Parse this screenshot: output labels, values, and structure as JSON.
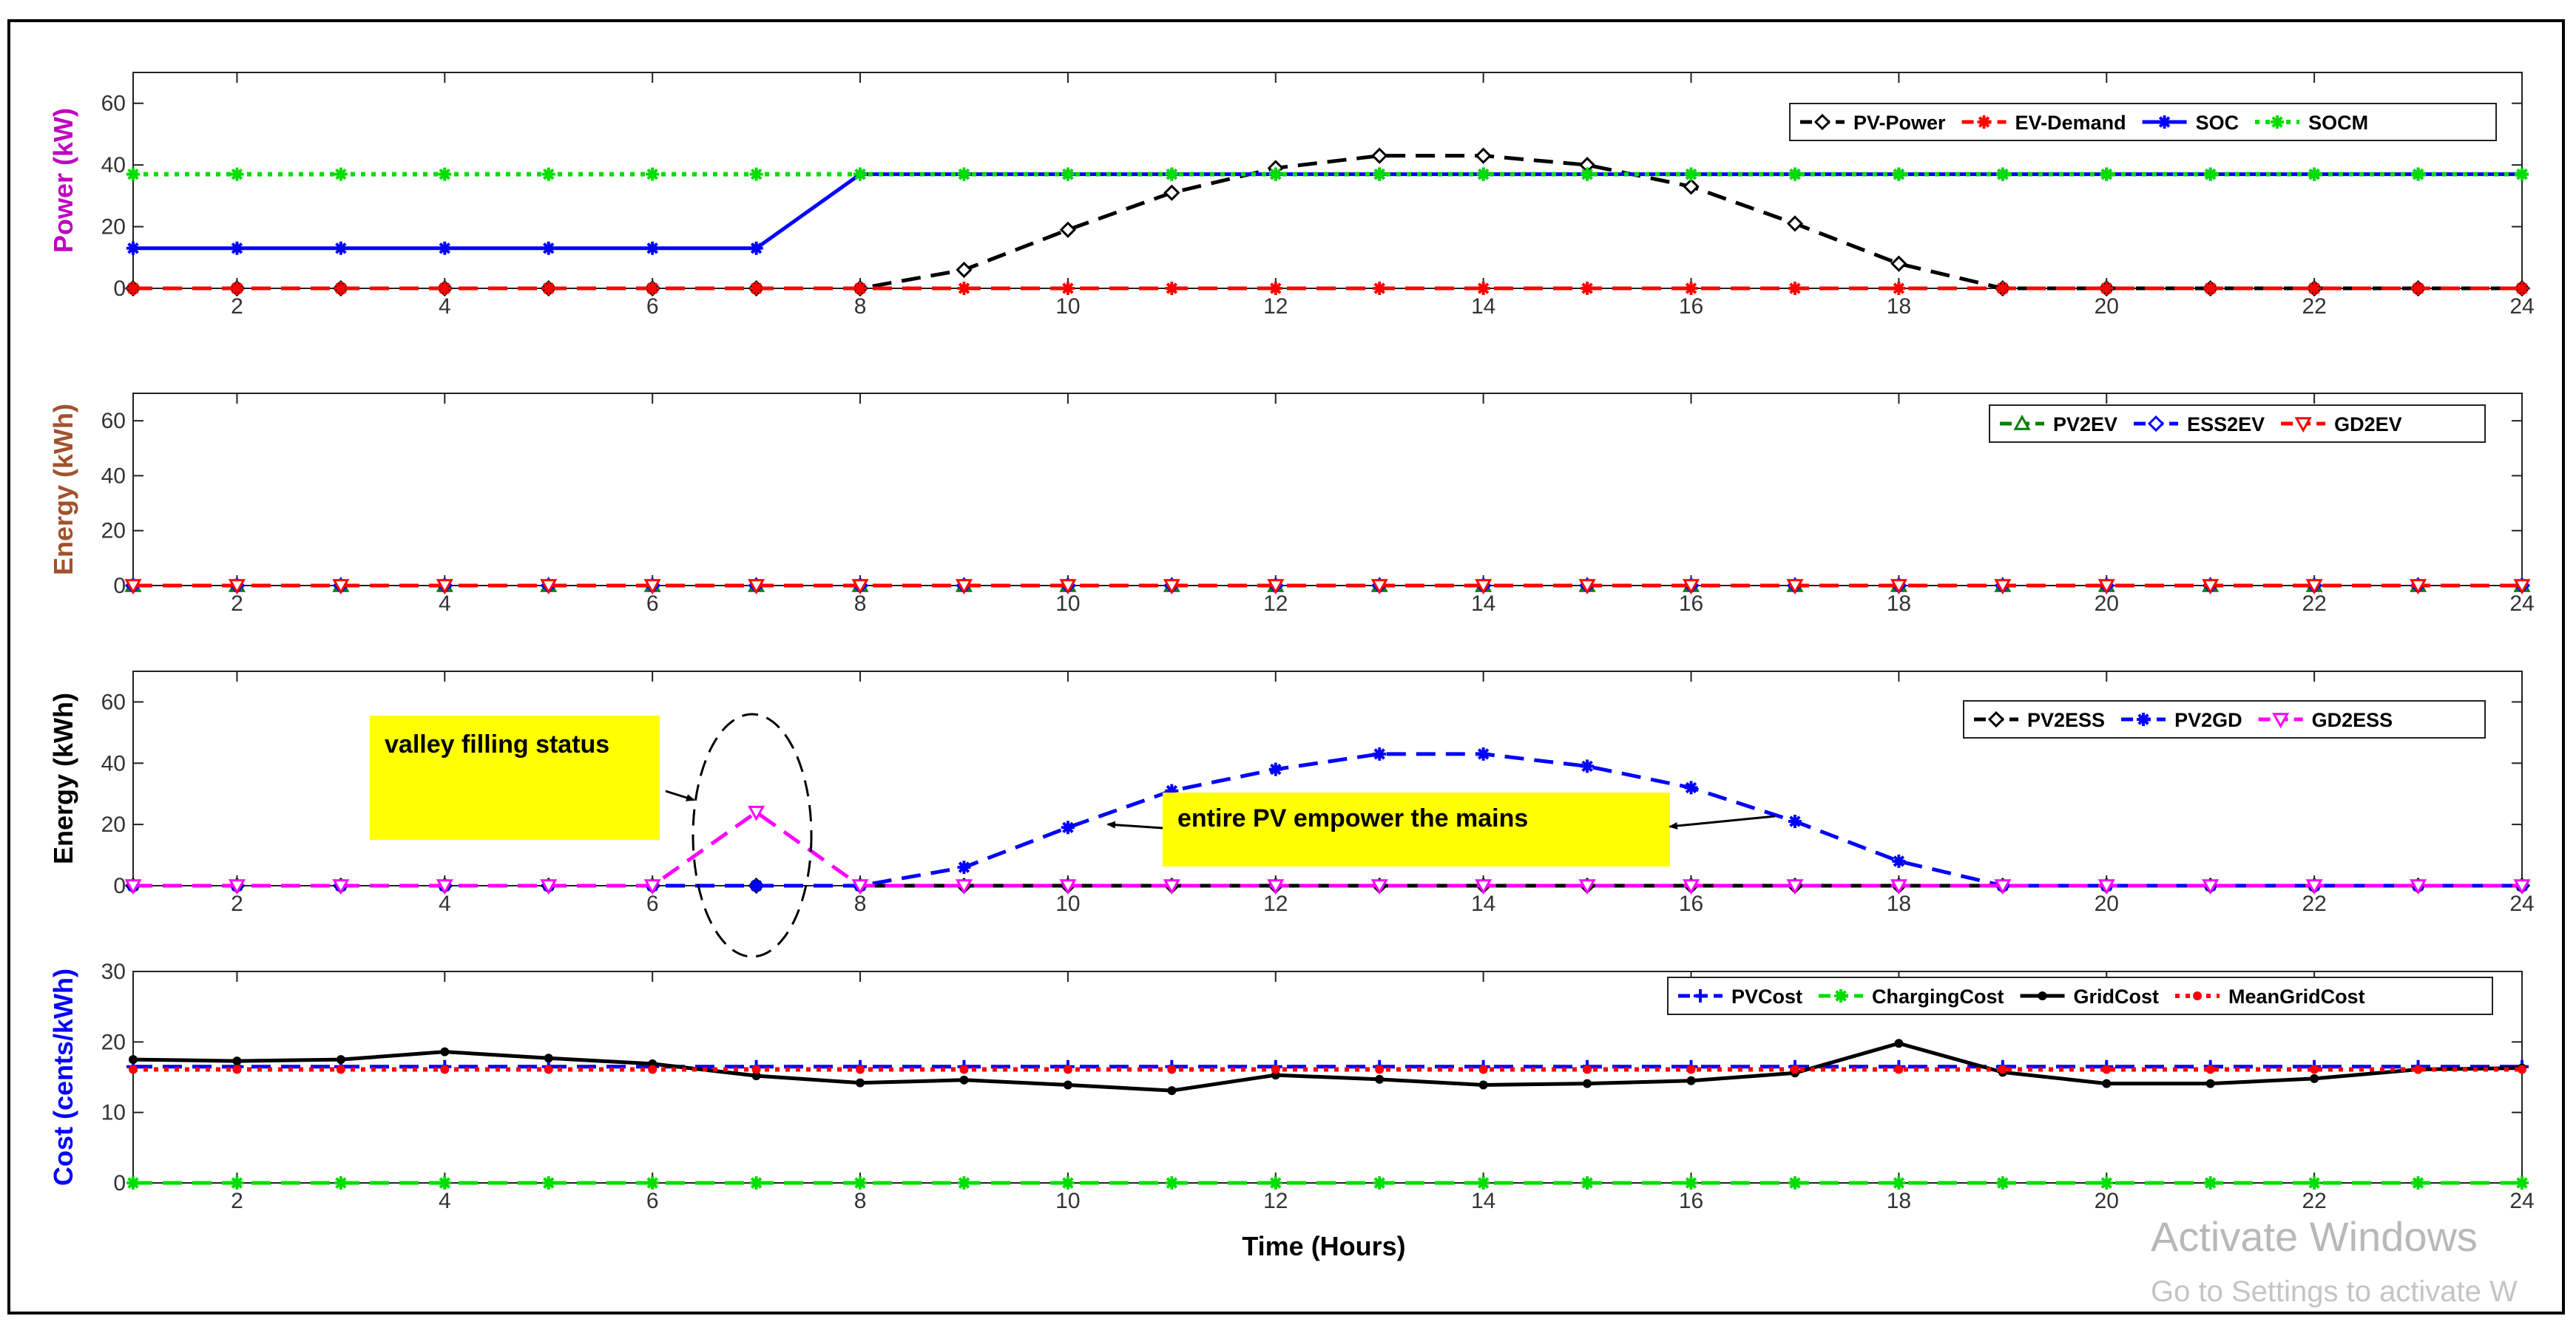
{
  "xlabel": "Time (Hours)",
  "watermark": {
    "line1": "Activate Windows",
    "line2": "Go to Settings to activate W"
  },
  "annotations": {
    "valley": "valley filling status",
    "pv": "entire PV empower the mains",
    "highlight_color": "#ffff00"
  },
  "chart_data": [
    {
      "type": "line",
      "ylabel": "Power (kW)",
      "ylabel_color": "#c000c0",
      "ylim": [
        0,
        70
      ],
      "yticks": [
        0,
        20,
        40,
        60
      ],
      "xlim": [
        1,
        24
      ],
      "xticks": [
        2,
        4,
        6,
        8,
        10,
        12,
        14,
        16,
        18,
        20,
        22,
        24
      ],
      "legend_position": "top-right",
      "x": [
        1,
        2,
        3,
        4,
        5,
        6,
        7,
        8,
        9,
        10,
        11,
        12,
        13,
        14,
        15,
        16,
        17,
        18,
        19,
        20,
        21,
        22,
        23,
        24
      ],
      "series": [
        {
          "name": "PV-Power",
          "color": "#000000",
          "dash": "dashed",
          "marker": "diamond",
          "values": [
            0,
            0,
            0,
            0,
            0,
            0,
            0,
            0,
            6,
            19,
            31,
            39,
            43,
            43,
            40,
            33,
            21,
            8,
            0,
            0,
            0,
            0,
            0,
            0
          ]
        },
        {
          "name": "EV-Demand",
          "color": "#ff0000",
          "dash": "dashed",
          "marker": "star",
          "values": [
            0,
            0,
            0,
            0,
            0,
            0,
            0,
            0,
            0,
            0,
            0,
            0,
            0,
            0,
            0,
            0,
            0,
            0,
            0,
            0,
            0,
            0,
            0,
            0
          ]
        },
        {
          "name": "SOC",
          "color": "#0000ff",
          "dash": "solid",
          "marker": "star",
          "values": [
            13,
            13,
            13,
            13,
            13,
            13,
            13,
            37,
            37,
            37,
            37,
            37,
            37,
            37,
            37,
            37,
            37,
            37,
            37,
            37,
            37,
            37,
            37,
            37
          ]
        },
        {
          "name": "SOCM",
          "color": "#00dd00",
          "dash": "dotted",
          "marker": "star",
          "values": [
            37,
            37,
            37,
            37,
            37,
            37,
            37,
            37,
            37,
            37,
            37,
            37,
            37,
            37,
            37,
            37,
            37,
            37,
            37,
            37,
            37,
            37,
            37,
            37
          ]
        }
      ]
    },
    {
      "type": "line",
      "ylabel": "Energy (kWh)",
      "ylabel_color": "#a0522d",
      "ylim": [
        0,
        70
      ],
      "yticks": [
        0,
        20,
        40,
        60
      ],
      "xlim": [
        1,
        24
      ],
      "xticks": [
        2,
        4,
        6,
        8,
        10,
        12,
        14,
        16,
        18,
        20,
        22,
        24
      ],
      "legend_position": "top-right",
      "x": [
        1,
        2,
        3,
        4,
        5,
        6,
        7,
        8,
        9,
        10,
        11,
        12,
        13,
        14,
        15,
        16,
        17,
        18,
        19,
        20,
        21,
        22,
        23,
        24
      ],
      "series": [
        {
          "name": "PV2EV",
          "color": "#008000",
          "dash": "dashed",
          "marker": "triangle-up",
          "values": [
            0,
            0,
            0,
            0,
            0,
            0,
            0,
            0,
            0,
            0,
            0,
            0,
            0,
            0,
            0,
            0,
            0,
            0,
            0,
            0,
            0,
            0,
            0,
            0
          ]
        },
        {
          "name": "ESS2EV",
          "color": "#0000ff",
          "dash": "dashed",
          "marker": "diamond",
          "values": [
            0,
            0,
            0,
            0,
            0,
            0,
            0,
            0,
            0,
            0,
            0,
            0,
            0,
            0,
            0,
            0,
            0,
            0,
            0,
            0,
            0,
            0,
            0,
            0
          ]
        },
        {
          "name": "GD2EV",
          "color": "#ff0000",
          "dash": "dashed",
          "marker": "triangle-down",
          "values": [
            0,
            0,
            0,
            0,
            0,
            0,
            0,
            0,
            0,
            0,
            0,
            0,
            0,
            0,
            0,
            0,
            0,
            0,
            0,
            0,
            0,
            0,
            0,
            0
          ]
        }
      ]
    },
    {
      "type": "line",
      "ylabel": "Energy (kWh)",
      "ylabel_color": "#000000",
      "ylim": [
        0,
        70
      ],
      "yticks": [
        0,
        20,
        40,
        60
      ],
      "xlim": [
        1,
        24
      ],
      "xticks": [
        2,
        4,
        6,
        8,
        10,
        12,
        14,
        16,
        18,
        20,
        22,
        24
      ],
      "legend_position": "top-right",
      "x": [
        1,
        2,
        3,
        4,
        5,
        6,
        7,
        8,
        9,
        10,
        11,
        12,
        13,
        14,
        15,
        16,
        17,
        18,
        19,
        20,
        21,
        22,
        23,
        24
      ],
      "series": [
        {
          "name": "PV2ESS",
          "color": "#000000",
          "dash": "dashed",
          "marker": "diamond",
          "values": [
            0,
            0,
            0,
            0,
            0,
            0,
            0,
            0,
            0,
            0,
            0,
            0,
            0,
            0,
            0,
            0,
            0,
            0,
            0,
            0,
            0,
            0,
            0,
            0
          ]
        },
        {
          "name": "PV2GD",
          "color": "#0000ff",
          "dash": "dashed",
          "marker": "star",
          "values": [
            0,
            0,
            0,
            0,
            0,
            0,
            0,
            0,
            6,
            19,
            31,
            38,
            43,
            43,
            39,
            32,
            21,
            8,
            0,
            0,
            0,
            0,
            0,
            0
          ]
        },
        {
          "name": "GD2ESS",
          "color": "#ff00ff",
          "dash": "dashed",
          "marker": "triangle-down",
          "values": [
            0,
            0,
            0,
            0,
            0,
            0,
            24,
            0,
            0,
            0,
            0,
            0,
            0,
            0,
            0,
            0,
            0,
            0,
            0,
            0,
            0,
            0,
            0,
            0
          ]
        }
      ]
    },
    {
      "type": "line",
      "ylabel": "Cost (cents/kWh)",
      "ylabel_color": "#0000ff",
      "ylim": [
        0,
        30
      ],
      "yticks": [
        0,
        10,
        20,
        30
      ],
      "xlim": [
        1,
        24
      ],
      "xticks": [
        2,
        4,
        6,
        8,
        10,
        12,
        14,
        16,
        18,
        20,
        22,
        24
      ],
      "legend_position": "top-right",
      "x": [
        1,
        2,
        3,
        4,
        5,
        6,
        7,
        8,
        9,
        10,
        11,
        12,
        13,
        14,
        15,
        16,
        17,
        18,
        19,
        20,
        21,
        22,
        23,
        24
      ],
      "series": [
        {
          "name": "PVCost",
          "color": "#0000ff",
          "dash": "dashed",
          "marker": "plus",
          "values": [
            16.5,
            16.5,
            16.5,
            16.5,
            16.5,
            16.5,
            16.5,
            16.5,
            16.5,
            16.5,
            16.5,
            16.5,
            16.5,
            16.5,
            16.5,
            16.5,
            16.5,
            16.5,
            16.5,
            16.5,
            16.5,
            16.5,
            16.5,
            16.5
          ]
        },
        {
          "name": "ChargingCost",
          "color": "#00dd00",
          "dash": "dashed",
          "marker": "star",
          "values": [
            0,
            0,
            0,
            0,
            0,
            0,
            0,
            0,
            0,
            0,
            0,
            0,
            0,
            0,
            0,
            0,
            0,
            0,
            0,
            0,
            0,
            0,
            0,
            0
          ]
        },
        {
          "name": "GridCost",
          "color": "#000000",
          "dash": "solid",
          "marker": "dot",
          "values": [
            17.5,
            17.3,
            17.5,
            18.6,
            17.7,
            16.9,
            15.2,
            14.2,
            14.6,
            13.9,
            13.1,
            15.3,
            14.7,
            13.9,
            14.1,
            14.5,
            15.6,
            19.8,
            15.7,
            14.1,
            14.1,
            14.8,
            16.1,
            16.3
          ]
        },
        {
          "name": "MeanGridCost",
          "color": "#ff0000",
          "dash": "dotted",
          "marker": "dot",
          "values": [
            16.1,
            16.1,
            16.1,
            16.1,
            16.1,
            16.1,
            16.1,
            16.1,
            16.1,
            16.1,
            16.1,
            16.1,
            16.1,
            16.1,
            16.1,
            16.1,
            16.1,
            16.1,
            16.1,
            16.1,
            16.1,
            16.1,
            16.1,
            16.1
          ]
        }
      ]
    }
  ]
}
